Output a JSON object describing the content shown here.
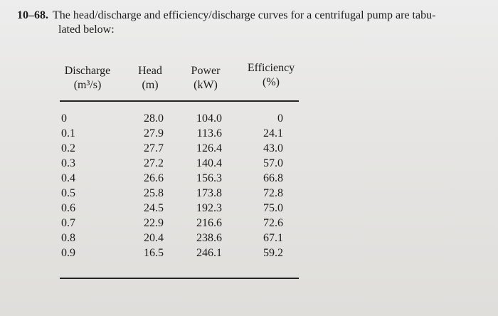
{
  "problem": {
    "number": "10–68.",
    "text_line1": "The head/discharge and efficiency/discharge curves for a centrifugal pump are tabu-",
    "text_line2": "lated below:"
  },
  "table": {
    "headers": [
      {
        "line1": "Discharge",
        "line2": "(m³/s)"
      },
      {
        "line1": "Head",
        "line2": "(m)"
      },
      {
        "line1": "Power",
        "line2": "(kW)"
      },
      {
        "line1": "Efficiency",
        "line2": "(%)"
      }
    ],
    "rows": [
      [
        "0",
        "28.0",
        "104.0",
        "0"
      ],
      [
        "0.1",
        "27.9",
        "113.6",
        "24.1"
      ],
      [
        "0.2",
        "27.7",
        "126.4",
        "43.0"
      ],
      [
        "0.3",
        "27.2",
        "140.4",
        "57.0"
      ],
      [
        "0.4",
        "26.6",
        "156.3",
        "66.8"
      ],
      [
        "0.5",
        "25.8",
        "173.8",
        "72.8"
      ],
      [
        "0.6",
        "24.5",
        "192.3",
        "75.0"
      ],
      [
        "0.7",
        "22.9",
        "216.6",
        "72.6"
      ],
      [
        "0.8",
        "20.4",
        "238.6",
        "67.1"
      ],
      [
        "0.9",
        "16.5",
        "246.1",
        "59.2"
      ]
    ]
  }
}
